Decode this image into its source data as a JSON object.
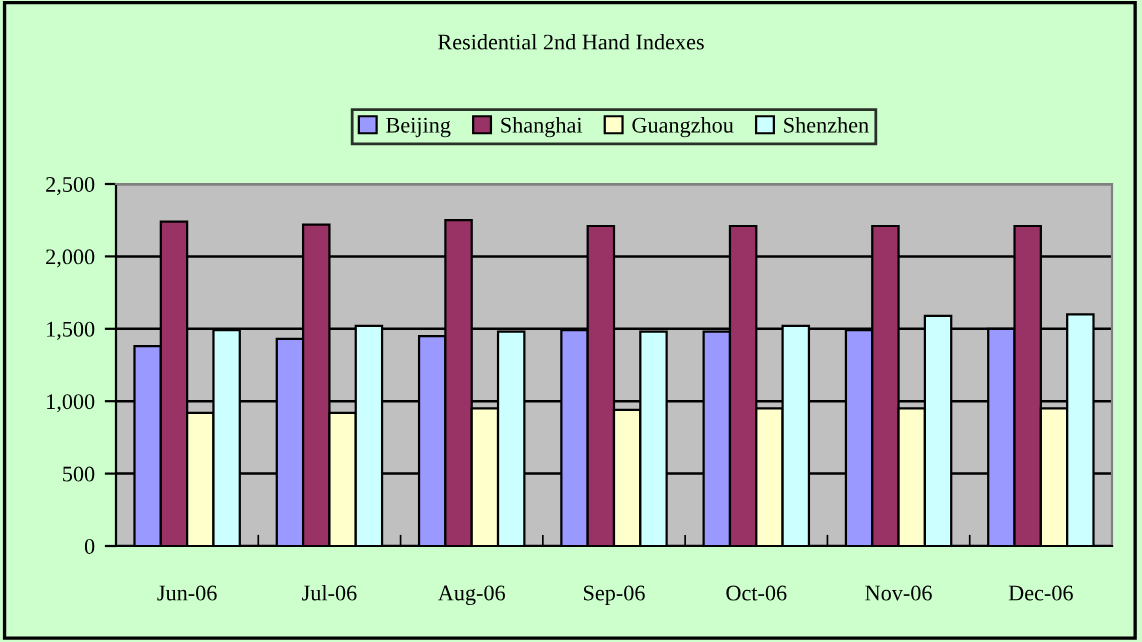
{
  "chart_data": {
    "type": "bar",
    "title": "Residential 2nd Hand Indexes",
    "categories": [
      "Jun-06",
      "Jul-06",
      "Aug-06",
      "Sep-06",
      "Oct-06",
      "Nov-06",
      "Dec-06"
    ],
    "series": [
      {
        "name": "Beijing",
        "color": "#9999ff",
        "values": [
          1380,
          1430,
          1450,
          1490,
          1480,
          1490,
          1500
        ]
      },
      {
        "name": "Shanghai",
        "color": "#993366",
        "values": [
          2240,
          2220,
          2250,
          2210,
          2210,
          2210,
          2210
        ]
      },
      {
        "name": "Guangzhou",
        "color": "#ffffcc",
        "values": [
          920,
          920,
          950,
          940,
          950,
          950,
          950
        ]
      },
      {
        "name": "Shenzhen",
        "color": "#ccffff",
        "values": [
          1490,
          1520,
          1480,
          1480,
          1520,
          1590,
          1600
        ]
      }
    ],
    "ylim": [
      0,
      2500
    ],
    "yticks": [
      0,
      {
        "value": 500,
        "label": "500"
      },
      {
        "value": 1000,
        "label": "1,000"
      },
      {
        "value": 1500,
        "label": "1,500"
      },
      {
        "value": 2000,
        "label": "2,000"
      },
      {
        "value": 2500,
        "label": "2,500"
      }
    ],
    "grid": "y",
    "legend": "top"
  }
}
